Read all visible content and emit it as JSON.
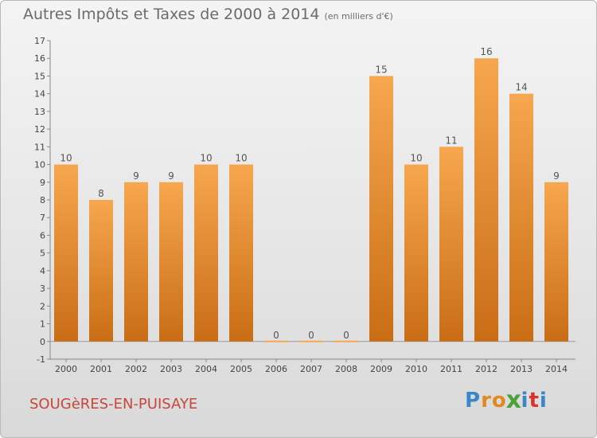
{
  "header": {
    "title": "Autres Impôts et Taxes de 2000 à 2014",
    "subtitle": "(en milliers d'€)"
  },
  "footer": {
    "commune": "SOUGèRES-EN-PUISAYE",
    "logo_letters": [
      "P",
      "r",
      "o",
      "x",
      "i",
      "t",
      "i"
    ]
  },
  "colors": {
    "bar_light": "#f7a74f",
    "bar_dark": "#c96d15",
    "commune": "#c8463b",
    "logo": [
      "#3a86c8",
      "#e08a1f",
      "#e08a1f",
      "#4aa33a",
      "#3a86c8",
      "#d8342e",
      "#3a86c8"
    ]
  },
  "chart_data": {
    "type": "bar",
    "title": "Autres Impôts et Taxes de 2000 à 2014",
    "subtitle": "(en milliers d'€)",
    "categories": [
      "2000",
      "2001",
      "2002",
      "2003",
      "2004",
      "2005",
      "2006",
      "2007",
      "2008",
      "2009",
      "2010",
      "2011",
      "2012",
      "2013",
      "2014"
    ],
    "values": [
      10,
      8,
      9,
      9,
      10,
      10,
      0,
      0,
      0,
      15,
      10,
      11,
      16,
      14,
      9
    ],
    "value_labels": [
      "10",
      "8",
      "9",
      "9",
      "10",
      "10",
      "0",
      "0",
      "0",
      "15",
      "10",
      "11",
      "16",
      "14",
      "9"
    ],
    "ylim": [
      -1,
      17
    ],
    "yticks": [
      "-1",
      "0",
      "1",
      "2",
      "3",
      "4",
      "5",
      "6",
      "7",
      "8",
      "9",
      "10",
      "11",
      "12",
      "13",
      "14",
      "15",
      "16",
      "17"
    ],
    "grid": false,
    "xlabel": "",
    "ylabel": ""
  }
}
